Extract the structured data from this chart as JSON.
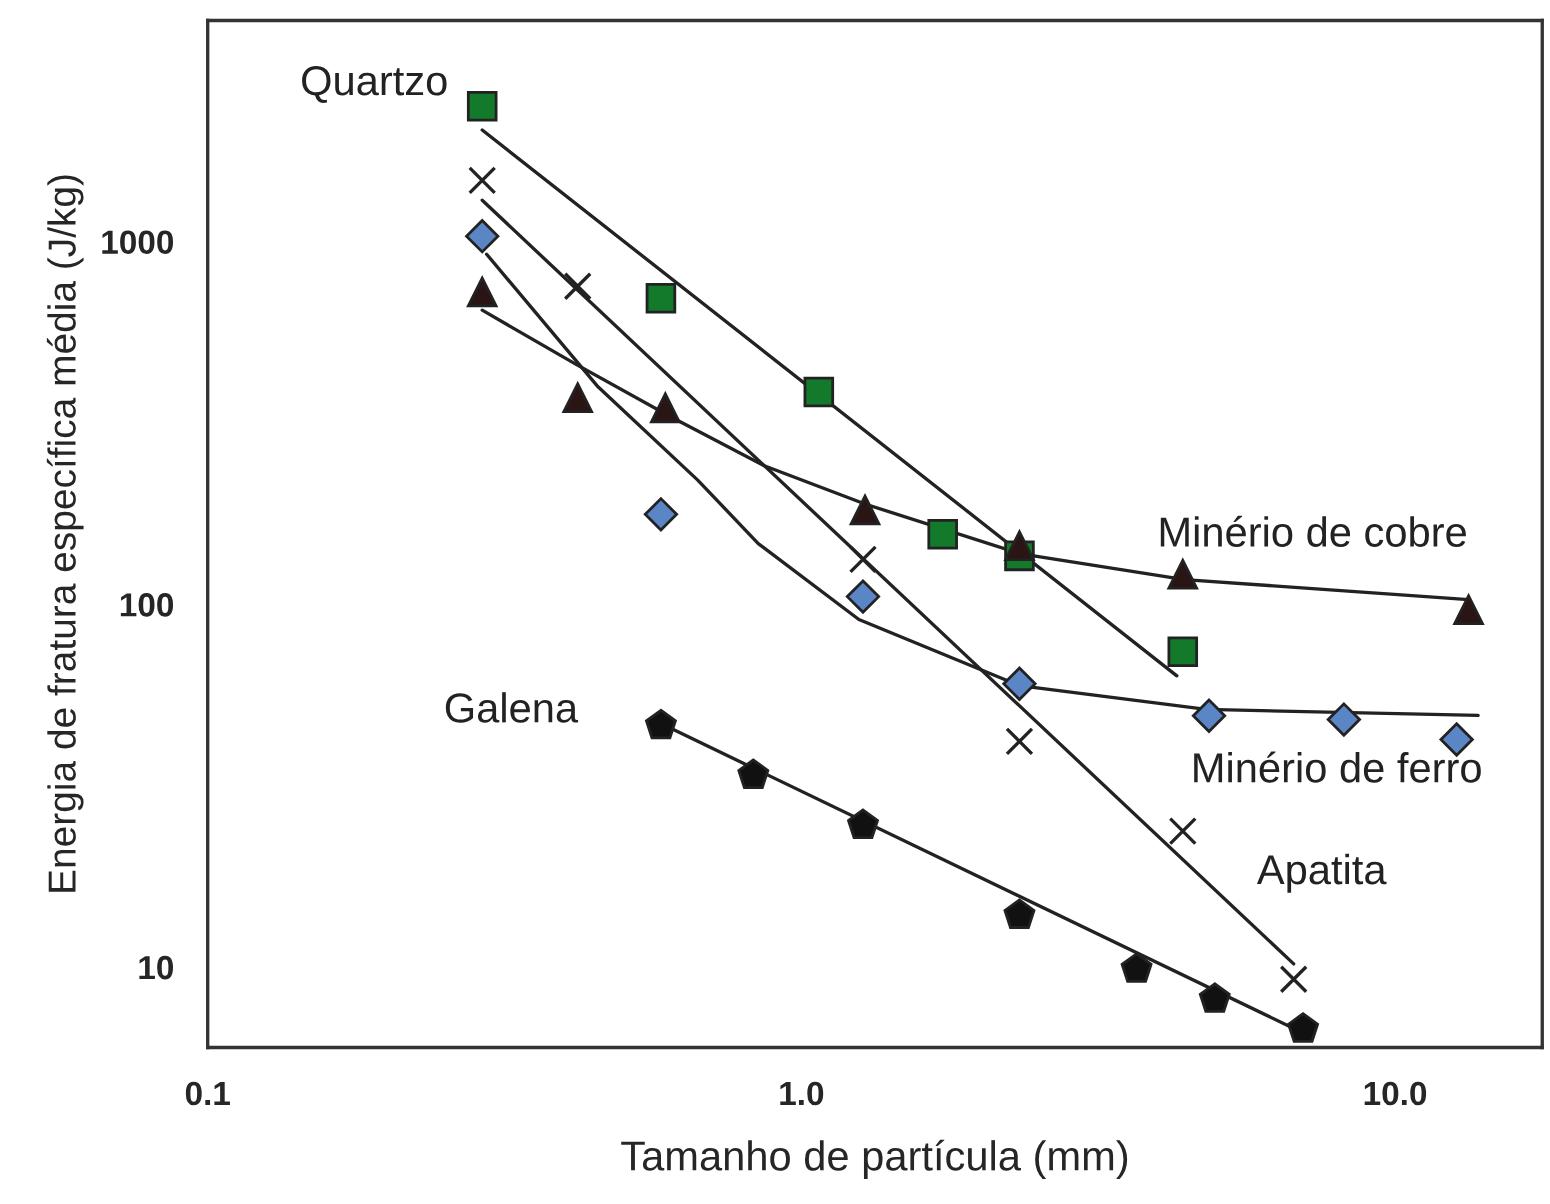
{
  "chart_data": {
    "type": "scatter",
    "xlabel": "Tamanho de partícula (mm)",
    "ylabel": "Energia de fratura específica média (J/kg)",
    "log": "xy",
    "grid": false,
    "xlim": [
      0.1,
      17.7
    ],
    "ylim": [
      6.0,
      4070
    ],
    "xticks": [
      {
        "value": 0.1,
        "label": "0.1"
      },
      {
        "value": 1,
        "label": "1.0"
      },
      {
        "value": 10,
        "label": "10.0"
      }
    ],
    "yticks": [
      10,
      100,
      1000
    ],
    "series": [
      {
        "name": "Quartzo",
        "marker": "square",
        "color": "#137a2c",
        "x": [
          0.29,
          0.58,
          1.07,
          1.73,
          2.33,
          4.39
        ],
        "values": [
          2360,
          698,
          385,
          156,
          136,
          74
        ]
      },
      {
        "name": "Apatita",
        "marker": "cross",
        "color": "#222222",
        "x": [
          0.29,
          0.42,
          1.27,
          2.33,
          4.39,
          6.75
        ],
        "values": [
          1475,
          753,
          133,
          41.9,
          23.7,
          9.25
        ]
      },
      {
        "name": "Minério de ferro",
        "marker": "diamond",
        "color": "#5b86c6",
        "x": [
          0.29,
          0.58,
          1.27,
          2.33,
          4.86,
          8.2,
          12.7
        ],
        "values": [
          1035,
          177,
          105,
          60.4,
          49.3,
          48.1,
          42.4
        ]
      },
      {
        "name": "Minério de cobre",
        "marker": "triangle",
        "color": "#2a1414",
        "x": [
          0.29,
          0.42,
          0.59,
          1.28,
          2.33,
          4.39,
          13.3
        ],
        "values": [
          726,
          371,
          348,
          182,
          145,
          121,
          96.6
        ]
      },
      {
        "name": "Galena",
        "color": "#111111",
        "x": [
          0.58,
          0.83,
          1.27,
          2.33,
          3.67,
          4.97,
          7.0
        ],
        "values": [
          46.3,
          33.8,
          24.6,
          13.9,
          9.87,
          8.16,
          6.75
        ]
      },
      {
        "type": "line",
        "marker": "none",
        "color": "#222222",
        "x": [
          0.29,
          4.29
        ],
        "values": [
          2030,
          63.5
        ]
      },
      {
        "type": "line",
        "marker": "none",
        "color": "#222222",
        "x": [
          0.29,
          6.75
        ],
        "values": [
          1300,
          10.2
        ]
      },
      {
        "type": "line",
        "marker": "none",
        "color": "#222222",
        "x": [
          0.295,
          0.453,
          0.669,
          0.846,
          1.25,
          2.33,
          4.81,
          13.8
        ],
        "values": [
          923,
          400,
          220,
          147,
          90.8,
          59.7,
          51.3,
          49.4
        ]
      },
      {
        "type": "line",
        "marker": "none",
        "color": "#222222",
        "x": [
          0.29,
          0.416,
          0.6,
          0.866,
          1.28,
          2.33,
          4.42,
          13.3
        ],
        "values": [
          647,
          460,
          330,
          241,
          189,
          138,
          117,
          103
        ]
      },
      {
        "type": "line",
        "marker": "none",
        "color": "#222222",
        "x": [
          0.58,
          7.0
        ],
        "values": [
          46.9,
          6.58
        ]
      }
    ]
  }
}
